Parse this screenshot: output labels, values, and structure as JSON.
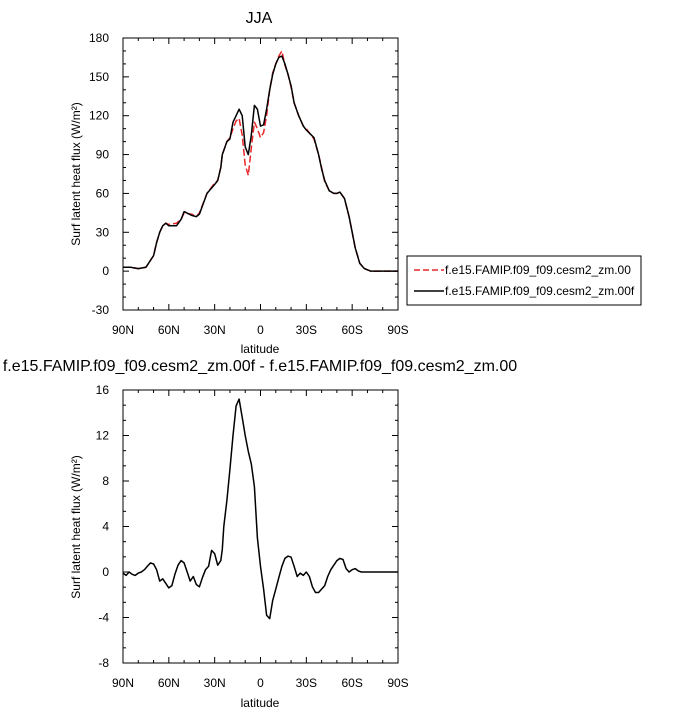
{
  "chart_data": [
    {
      "type": "line",
      "title": "JJA",
      "xlabel": "latitude",
      "ylabel": "Surf latent heat flux",
      "ylabel_unit": "(W/m²)",
      "xlim": [
        90,
        -90
      ],
      "ylim": [
        -30,
        180
      ],
      "yticks": [
        -30,
        0,
        30,
        60,
        90,
        120,
        150,
        180
      ],
      "xticks": [
        90,
        60,
        30,
        0,
        -30,
        -60,
        -90
      ],
      "xticklabels": [
        "90N",
        "60N",
        "30N",
        "0",
        "30S",
        "60S",
        "90S"
      ],
      "legend_position": "right",
      "series": [
        {
          "name": "f.e15.FAMIP.f09_f09.cesm2_zm.00",
          "color": "#e8262a",
          "style": "dashed",
          "x": [
            90,
            85,
            80,
            75,
            70,
            68,
            66,
            64,
            62,
            60,
            55,
            52,
            50,
            45,
            42,
            40,
            35,
            30,
            28,
            26,
            25,
            22,
            20,
            18,
            16,
            14,
            12,
            10,
            8,
            6,
            4,
            2,
            0,
            -2,
            -4,
            -6,
            -8,
            -10,
            -12,
            -14,
            -16,
            -18,
            -20,
            -22,
            -25,
            -28,
            -30,
            -35,
            -38,
            -40,
            -42,
            -45,
            -48,
            -50,
            -52,
            -55,
            -58,
            -60,
            -62,
            -65,
            -68,
            -70,
            -72,
            -75,
            -78,
            -80,
            -85,
            -90
          ],
          "y": [
            3,
            3,
            2,
            3,
            12,
            22,
            30,
            35,
            37,
            36,
            37,
            40,
            45,
            44,
            42,
            45,
            60,
            68,
            70,
            80,
            90,
            100,
            103,
            110,
            116,
            118,
            105,
            82,
            74,
            95,
            115,
            110,
            103,
            107,
            120,
            140,
            153,
            160,
            166,
            170,
            159,
            152,
            142,
            130,
            120,
            112,
            110,
            102,
            90,
            80,
            69,
            62,
            60,
            60,
            61,
            56,
            42,
            30,
            18,
            6,
            2,
            1,
            0,
            0,
            0,
            0,
            0,
            0
          ]
        },
        {
          "name": "f.e15.FAMIP.f09_f09.cesm2_zm.00f",
          "color": "#000000",
          "style": "solid",
          "x": [
            90,
            85,
            80,
            75,
            70,
            68,
            66,
            64,
            62,
            60,
            55,
            52,
            50,
            45,
            42,
            40,
            35,
            30,
            28,
            26,
            25,
            22,
            20,
            18,
            16,
            14,
            12,
            10,
            8,
            6,
            4,
            2,
            0,
            -2,
            -4,
            -6,
            -8,
            -10,
            -12,
            -14,
            -16,
            -18,
            -20,
            -22,
            -25,
            -28,
            -30,
            -35,
            -38,
            -40,
            -42,
            -45,
            -48,
            -50,
            -52,
            -55,
            -58,
            -60,
            -62,
            -65,
            -68,
            -70,
            -72,
            -75,
            -78,
            -80,
            -85,
            -90
          ],
          "y": [
            3,
            3,
            2,
            3,
            12,
            22,
            30,
            35,
            37,
            35,
            35,
            40,
            46,
            43,
            42,
            44,
            60,
            67,
            70,
            80,
            90,
            100,
            102,
            115,
            120,
            125,
            120,
            96,
            90,
            105,
            128,
            125,
            112,
            113,
            125,
            140,
            152,
            160,
            165,
            166,
            160,
            152,
            143,
            130,
            120,
            112,
            109,
            103,
            90,
            79,
            70,
            62,
            60,
            60,
            61,
            56,
            42,
            30,
            18,
            6,
            2,
            1,
            0,
            0,
            0,
            0,
            0,
            0
          ]
        }
      ]
    },
    {
      "type": "line",
      "title": "f.e15.FAMIP.f09_f09.cesm2_zm.00f - f.e15.FAMIP.f09_f09.cesm2_zm.00",
      "xlabel": "latitude",
      "ylabel": "Surf latent heat flux",
      "ylabel_unit": "(W/m²)",
      "xlim": [
        90,
        -90
      ],
      "ylim": [
        -8,
        16
      ],
      "yticks": [
        -8,
        -4,
        0,
        4,
        8,
        12,
        16
      ],
      "xticks": [
        90,
        60,
        30,
        0,
        -30,
        -60,
        -90
      ],
      "xticklabels": [
        "90N",
        "60N",
        "30N",
        "0",
        "30S",
        "60S",
        "90S"
      ],
      "series": [
        {
          "color": "#000000",
          "style": "solid",
          "x": [
            90,
            88,
            86,
            84,
            82,
            80,
            78,
            76,
            74,
            72,
            70,
            68,
            66,
            64,
            62,
            60,
            58,
            56,
            54,
            52,
            50,
            48,
            46,
            44,
            42,
            40,
            38,
            36,
            34,
            32,
            30,
            28,
            26,
            25,
            24,
            22,
            20,
            18,
            16,
            14,
            12,
            10,
            8,
            6,
            4,
            2,
            0,
            -2,
            -4,
            -6,
            -8,
            -10,
            -12,
            -14,
            -16,
            -18,
            -20,
            -22,
            -24,
            -26,
            -28,
            -30,
            -32,
            -34,
            -36,
            -38,
            -40,
            -42,
            -44,
            -46,
            -48,
            -50,
            -52,
            -54,
            -56,
            -58,
            -60,
            -62,
            -64,
            -66,
            -68,
            -70,
            -72,
            -74,
            -76,
            -78,
            -80,
            -84,
            -88,
            -90
          ],
          "y": [
            -0.1,
            -0.3,
            0,
            -0.2,
            -0.3,
            -0.1,
            0,
            0.2,
            0.5,
            0.8,
            0.7,
            0.2,
            -0.8,
            -0.6,
            -1.0,
            -1.4,
            -1.2,
            -0.2,
            0.6,
            1.0,
            0.8,
            0,
            -0.8,
            -0.4,
            -1.1,
            -1.3,
            -0.5,
            0.2,
            0.5,
            1.9,
            1.6,
            0.6,
            1.0,
            2.0,
            4.0,
            6.3,
            9.0,
            12.0,
            14.6,
            15.2,
            13.6,
            12.0,
            10.6,
            9.5,
            7.5,
            3.0,
            0.5,
            -1.5,
            -3.8,
            -4.1,
            -2.5,
            -1.5,
            -0.5,
            0.5,
            1.2,
            1.4,
            1.3,
            0.5,
            -0.4,
            -0.1,
            -0.3,
            0,
            -0.4,
            -1.3,
            -1.8,
            -1.8,
            -1.5,
            -1.2,
            -0.4,
            0.2,
            0.6,
            1.0,
            1.2,
            1.1,
            0.3,
            0,
            0.2,
            0.3,
            0.1,
            0,
            0,
            0,
            0,
            0,
            0,
            0,
            0,
            0,
            0,
            0
          ]
        }
      ]
    }
  ]
}
